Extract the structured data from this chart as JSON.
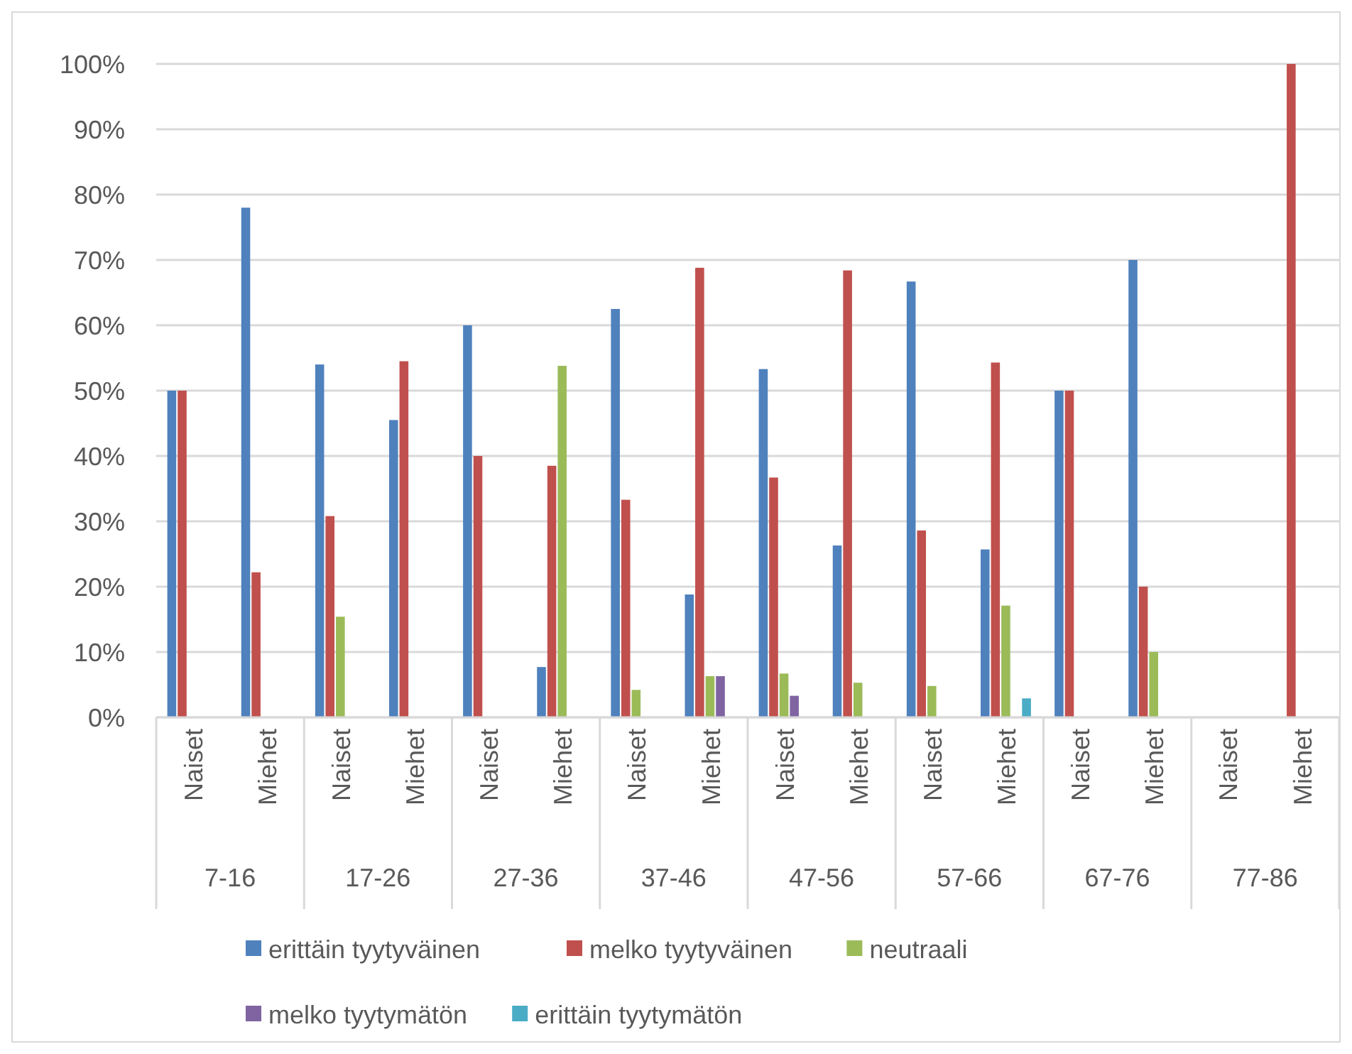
{
  "chart_data": {
    "type": "bar",
    "categories": [
      "Naiset",
      "Miehet",
      "Naiset",
      "Miehet",
      "Naiset",
      "Miehet",
      "Naiset",
      "Miehet",
      "Naiset",
      "Miehet",
      "Naiset",
      "Miehet",
      "Naiset",
      "Miehet",
      "Naiset",
      "Miehet"
    ],
    "series": [
      {
        "name": "erittäin tyytyväinen",
        "color": "#4f81bd",
        "values": [
          50,
          78,
          54,
          45.5,
          60,
          7.7,
          62.5,
          18.8,
          53.3,
          26.3,
          66.7,
          25.7,
          50,
          70,
          null,
          null
        ]
      },
      {
        "name": "melko tyytyväinen",
        "color": "#c0504d",
        "values": [
          50,
          22.2,
          30.8,
          54.5,
          40,
          38.5,
          33.3,
          68.8,
          36.7,
          68.4,
          28.6,
          54.3,
          50,
          20,
          null,
          100
        ]
      },
      {
        "name": "neutraali",
        "color": "#9bbb59",
        "values": [
          null,
          null,
          15.4,
          null,
          null,
          53.8,
          4.2,
          6.3,
          6.7,
          5.3,
          4.8,
          17.1,
          null,
          10,
          null,
          null
        ]
      },
      {
        "name": "melko tyytymätön",
        "color": "#8064a2",
        "values": [
          null,
          null,
          null,
          null,
          null,
          null,
          null,
          6.3,
          3.3,
          null,
          null,
          null,
          null,
          null,
          null,
          null
        ]
      },
      {
        "name": "erittäin tyytymätön",
        "color": "#4bacc6",
        "values": [
          null,
          null,
          null,
          null,
          null,
          null,
          null,
          null,
          null,
          null,
          null,
          2.9,
          null,
          null,
          null,
          null
        ]
      }
    ],
    "annotations": [
      "7-16",
      "17-26",
      "27-36",
      "37-46",
      "47-56",
      "57-66",
      "67-76",
      "77-86"
    ],
    "ylim": [
      0,
      100
    ],
    "yticks": [
      {
        "value": 0,
        "label": "0%"
      },
      {
        "value": 10,
        "label": "10%"
      },
      {
        "value": 20,
        "label": "20%"
      },
      {
        "value": 30,
        "label": "30%"
      },
      {
        "value": 40,
        "label": "40%"
      },
      {
        "value": 50,
        "label": "50%"
      },
      {
        "value": 60,
        "label": "60%"
      },
      {
        "value": 70,
        "label": "70%"
      },
      {
        "value": 80,
        "label": "80%"
      },
      {
        "value": 90,
        "label": "90%"
      },
      {
        "value": 100,
        "label": "100%"
      }
    ],
    "grid": "y",
    "legend": "bottom"
  }
}
